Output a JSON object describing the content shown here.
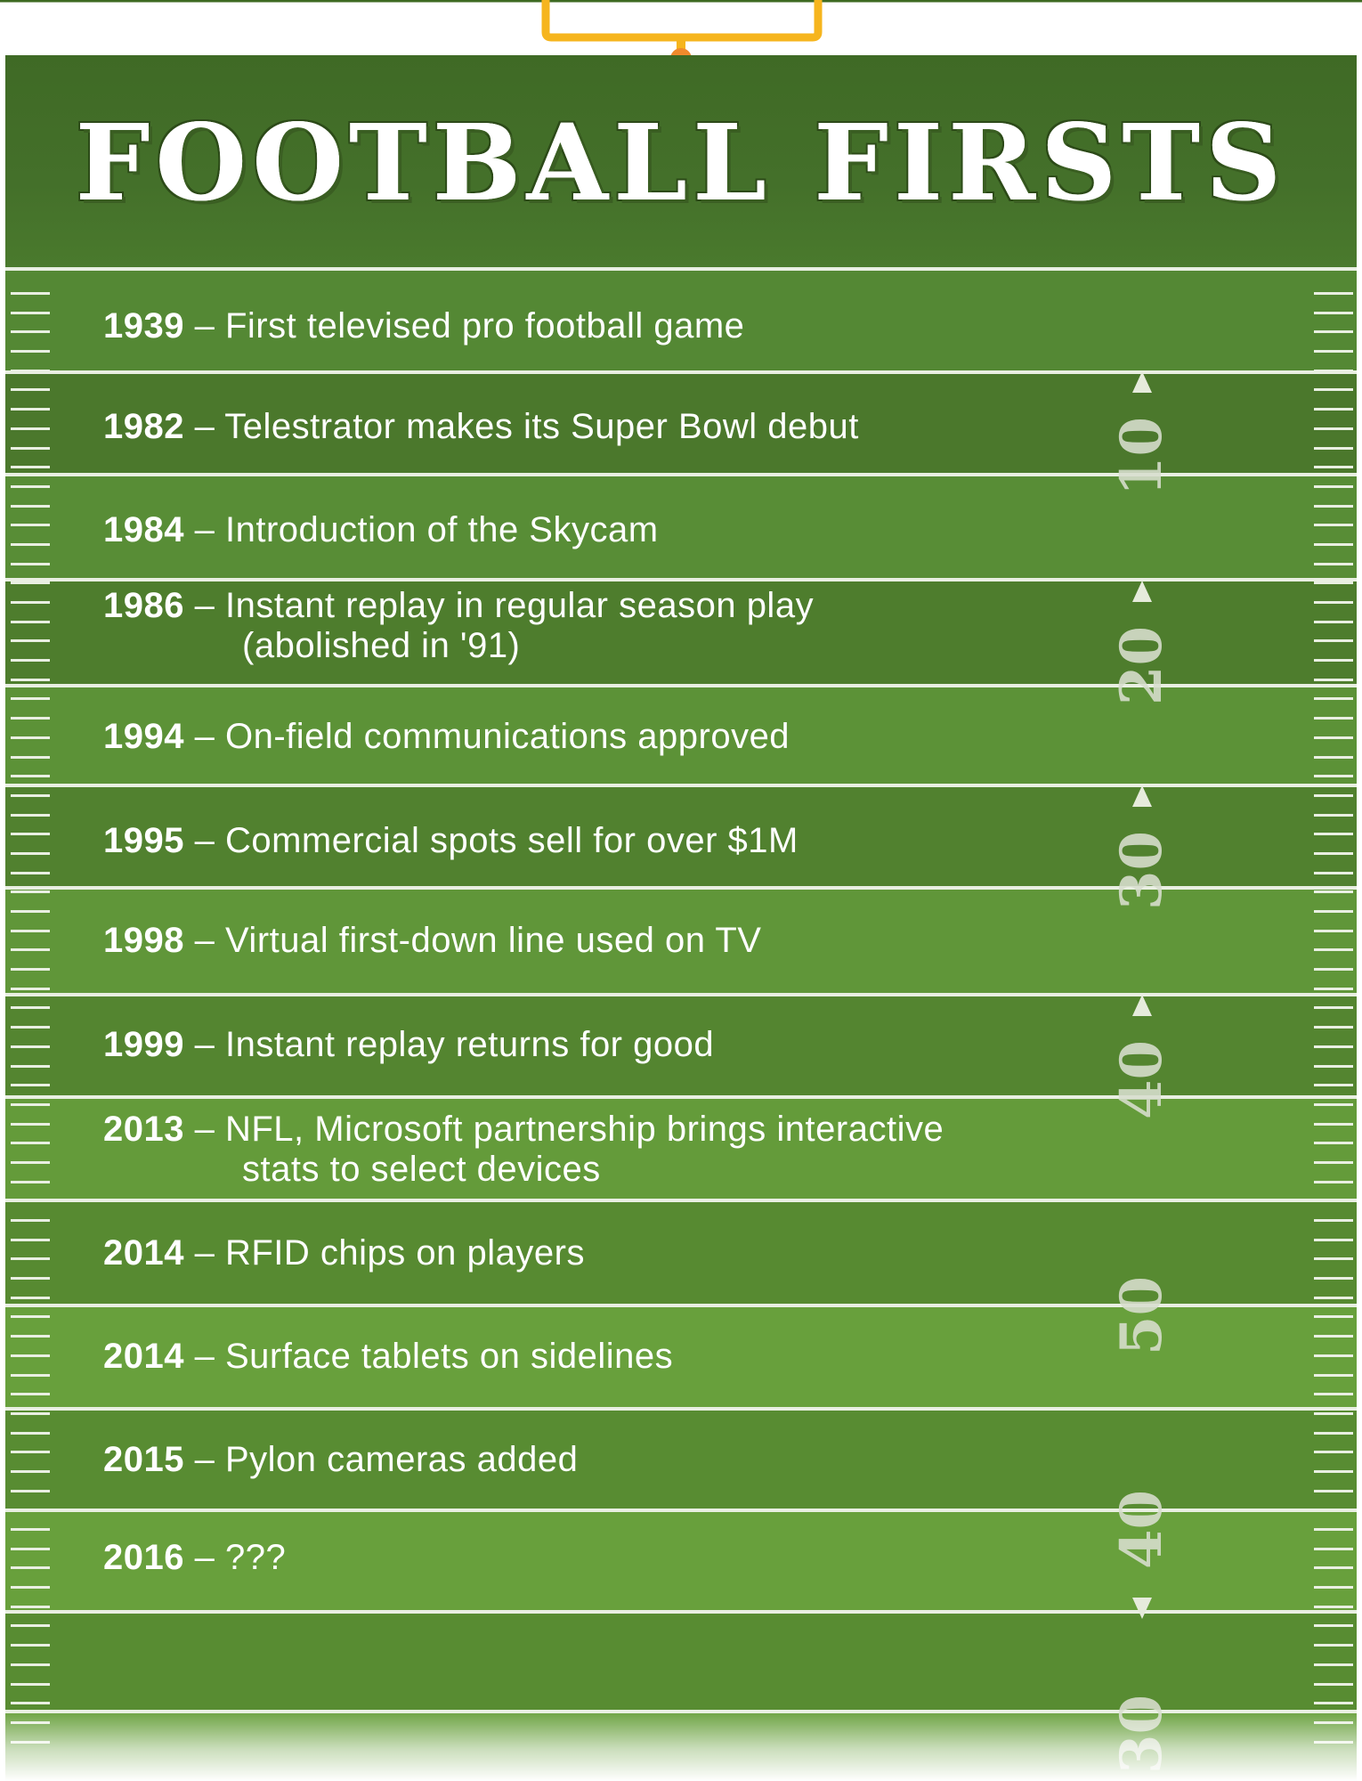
{
  "title": "FOOTBALL FIRSTS",
  "colors": {
    "field_dark": "#4a782c",
    "field_light": "#649a36",
    "header": "#44702a",
    "goalpost": "#f6b51e",
    "goalpost_base": "#f08a2c",
    "lines": "#e9efe2"
  },
  "events": [
    {
      "year": "1939",
      "text": "First televised pro football game",
      "text2": ""
    },
    {
      "year": "1982",
      "text": "Telestrator makes its Super Bowl debut",
      "text2": ""
    },
    {
      "year": "1984",
      "text": "Introduction of the Skycam",
      "text2": ""
    },
    {
      "year": "1986",
      "text": "Instant replay in regular season play",
      "text2": "(abolished in '91)"
    },
    {
      "year": "1994",
      "text": "On-field communications approved",
      "text2": ""
    },
    {
      "year": "1995",
      "text": "Commercial spots sell for over $1M",
      "text2": ""
    },
    {
      "year": "1998",
      "text": "Virtual first-down line used on TV",
      "text2": ""
    },
    {
      "year": "1999",
      "text": "Instant replay returns for good",
      "text2": ""
    },
    {
      "year": "2013",
      "text": "NFL, Microsoft partnership brings interactive",
      "text2": "stats to select devices"
    },
    {
      "year": "2014",
      "text": "RFID chips on players",
      "text2": ""
    },
    {
      "year": "2014",
      "text": "Surface tablets on sidelines",
      "text2": ""
    },
    {
      "year": "2015",
      "text": "Pylon cameras added",
      "text2": ""
    },
    {
      "year": "2016",
      "text": "???",
      "text2": ""
    }
  ],
  "yard_numbers": [
    {
      "label": "10",
      "arrow": "up"
    },
    {
      "label": "20",
      "arrow": "up"
    },
    {
      "label": "30",
      "arrow": "up"
    },
    {
      "label": "40",
      "arrow": "up"
    },
    {
      "label": "50",
      "arrow": ""
    },
    {
      "label": "40",
      "arrow": "down"
    },
    {
      "label": "30",
      "arrow": ""
    }
  ]
}
